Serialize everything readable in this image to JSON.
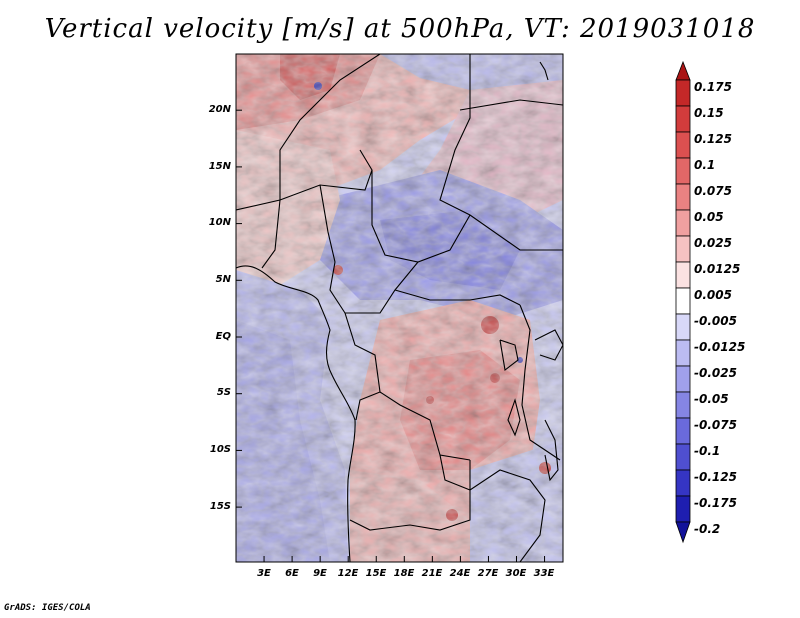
{
  "title": "Vertical velocity [m/s] at 500hPa, VT: 2019031018",
  "credit": "GrADS: IGES/COLA",
  "map": {
    "lat_labels": [
      "20N",
      "15N",
      "10N",
      "5N",
      "EQ",
      "5S",
      "10S",
      "15S"
    ],
    "lon_labels": [
      "3E",
      "6E",
      "9E",
      "12E",
      "15E",
      "18E",
      "21E",
      "24E",
      "27E",
      "30E",
      "33E"
    ],
    "lat_range": [
      -20,
      25
    ],
    "lon_range": [
      0,
      35
    ]
  },
  "colorbar": {
    "levels": [
      "0.175",
      "0.15",
      "0.125",
      "0.1",
      "0.075",
      "0.05",
      "0.025",
      "0.0125",
      "0.005",
      "-0.005",
      "-0.0125",
      "-0.025",
      "-0.05",
      "-0.075",
      "-0.1",
      "-0.125",
      "-0.175",
      "-0.2"
    ],
    "colors": [
      "#aa1414",
      "#c42828",
      "#d23c3c",
      "#dc5050",
      "#e26767",
      "#ea8282",
      "#f0a0a0",
      "#f6c2c2",
      "#fbe2e2",
      "#ffffff",
      "#d8d8f8",
      "#bcbcf2",
      "#a0a0ec",
      "#8585e4",
      "#6a6adc",
      "#4f4fd0",
      "#3535c4",
      "#1e1eb0",
      "#12129a"
    ]
  }
}
